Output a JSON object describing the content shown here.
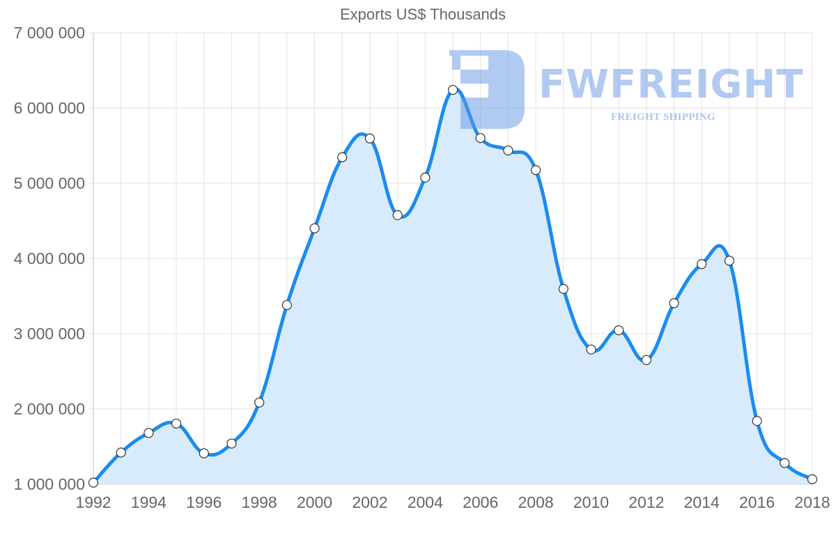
{
  "chart_data": {
    "type": "line",
    "title": "Exports US$ Thousands",
    "xlabel": "",
    "ylabel": "",
    "x": [
      1992,
      1993,
      1994,
      1995,
      1996,
      1997,
      1998,
      1999,
      2000,
      2001,
      2002,
      2003,
      2004,
      2005,
      2006,
      2007,
      2008,
      2009,
      2010,
      2011,
      2012,
      2013,
      2014,
      2015,
      2016,
      2017,
      2018
    ],
    "series": [
      {
        "name": "Exports US$ Thousands",
        "values": [
          1020000,
          1420000,
          1680000,
          1805000,
          1410000,
          1540000,
          2085000,
          3380000,
          4400000,
          5345000,
          5595000,
          4575000,
          5075000,
          6240000,
          5600000,
          5435000,
          5175000,
          3595000,
          2790000,
          3045000,
          2650000,
          3405000,
          3925000,
          3970000,
          1840000,
          1280000,
          1065000
        ],
        "color": "#1a8cf0",
        "fill": "#d8ebfc",
        "point_fill": "#ffffff",
        "point_stroke": "#333333"
      }
    ],
    "ylim": [
      1000000,
      7000000
    ],
    "xlim": [
      1992,
      2018
    ],
    "y_ticks": [
      {
        "value": 7000000,
        "label": "7 000 000"
      },
      {
        "value": 6000000,
        "label": "6 000 000"
      },
      {
        "value": 5000000,
        "label": "5 000 000"
      },
      {
        "value": 4000000,
        "label": "4 000 000"
      },
      {
        "value": 3000000,
        "label": "3 000 000"
      },
      {
        "value": 2000000,
        "label": "2 000 000"
      },
      {
        "value": 1000000,
        "label": "1 000 000"
      }
    ],
    "x_ticks": [
      {
        "value": 1992,
        "label": "1992"
      },
      {
        "value": 1994,
        "label": "1994"
      },
      {
        "value": 1996,
        "label": "1996"
      },
      {
        "value": 1998,
        "label": "1998"
      },
      {
        "value": 2000,
        "label": "2000"
      },
      {
        "value": 2002,
        "label": "2002"
      },
      {
        "value": 2004,
        "label": "2004"
      },
      {
        "value": 2006,
        "label": "2006"
      },
      {
        "value": 2008,
        "label": "2008"
      },
      {
        "value": 2010,
        "label": "2010"
      },
      {
        "value": 2012,
        "label": "2012"
      },
      {
        "value": 2014,
        "label": "2014"
      },
      {
        "value": 2016,
        "label": "2016"
      },
      {
        "value": 2018,
        "label": "2018"
      }
    ],
    "grid": true,
    "legend": "none",
    "colors": {
      "grid": "#e3e3e3",
      "axis": "#cccccc",
      "tick_text": "#666666"
    }
  },
  "watermark": {
    "brand": "FWFREIGHT",
    "tagline": "FREIGHT SHIPPING",
    "color": "#6496e6"
  }
}
